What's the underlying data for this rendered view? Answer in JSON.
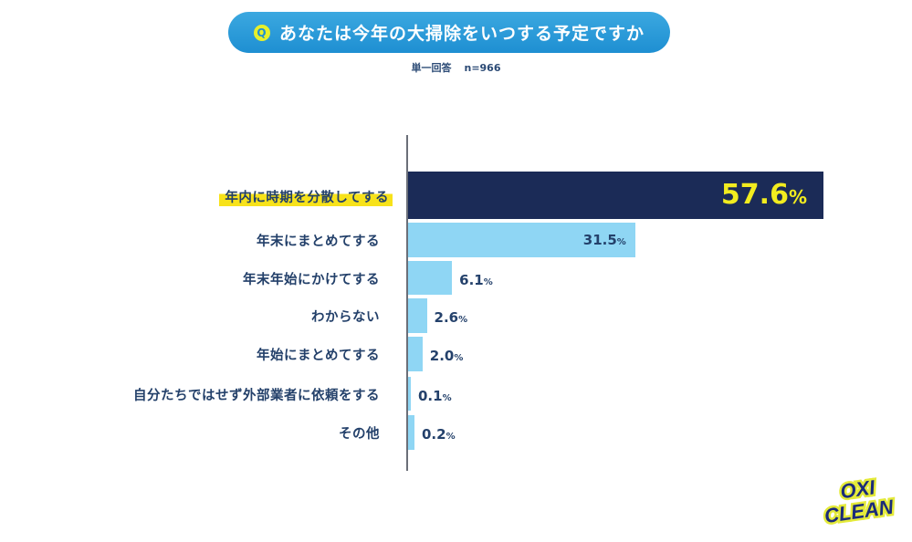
{
  "header": {
    "q_icon": "Q",
    "question": "あなたは今年の大掃除をいつする予定ですか",
    "answer_type": "単一回答",
    "sample_size": "n=966"
  },
  "brand": {
    "logo_line1": "OXI",
    "logo_line2": "CLEAN"
  },
  "colors": {
    "banner": "#1e8fd2",
    "top_bar": "#1b2b57",
    "bars": "#8fd6f4",
    "highlight": "#f7e21a",
    "top_value": "#f2ec1f"
  },
  "chart_data": {
    "type": "bar",
    "orientation": "horizontal",
    "title": "あなたは今年の大掃除をいつする予定ですか",
    "subtitle": "単一回答　n=966",
    "categories": [
      "年内に時期を分散してする",
      "年末にまとめてする",
      "年末年始にかけてする",
      "わからない",
      "年始にまとめてする",
      "自分たちではせず外部業者に依頼をする",
      "その他"
    ],
    "values": [
      57.6,
      31.5,
      6.1,
      2.6,
      2.0,
      0.1,
      0.2
    ],
    "value_labels": [
      "57.6",
      "31.5",
      "6.1",
      "2.6",
      "2.0",
      "0.1",
      "0.2"
    ],
    "unit": "%",
    "xlabel": "",
    "ylabel": "",
    "grid": false,
    "legend": null,
    "highlighted_category": "年内に時期を分散してする"
  }
}
